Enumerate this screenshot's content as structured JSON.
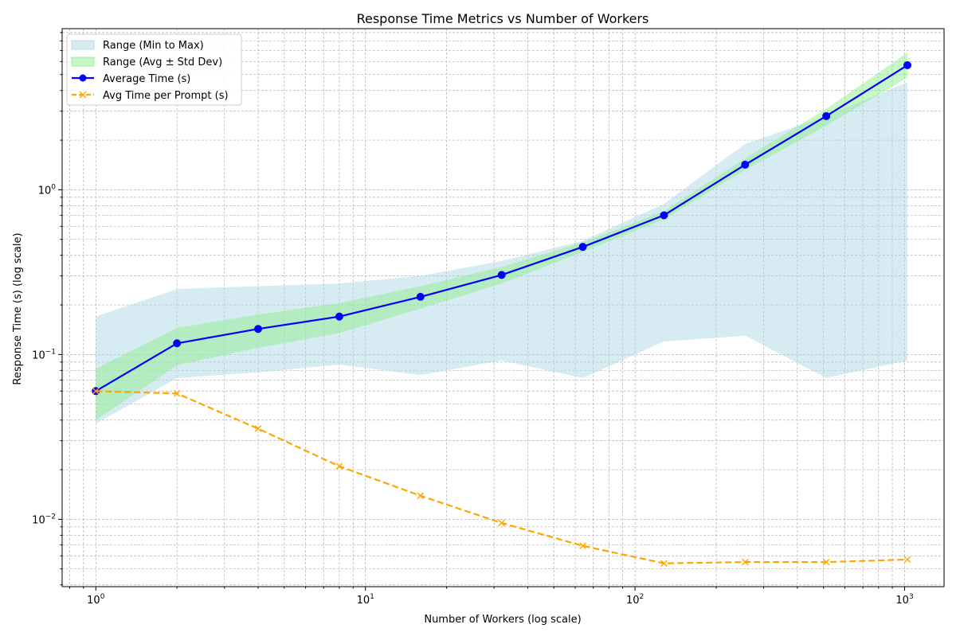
{
  "chart_data": {
    "type": "line",
    "title": "Response Time Metrics vs Number of Workers",
    "xlabel": "Number of Workers (log scale)",
    "ylabel": "Response Time (s) (log scale)",
    "xscale": "log",
    "yscale": "log",
    "xlim": [
      0.75,
      1400
    ],
    "ylim": [
      0.0039,
      9.5
    ],
    "grid": true,
    "legend_position": "top-left",
    "x_ticks": [
      {
        "base": "10",
        "exp": "0"
      },
      {
        "base": "10",
        "exp": "1"
      },
      {
        "base": "10",
        "exp": "2"
      },
      {
        "base": "10",
        "exp": "3"
      }
    ],
    "y_ticks": [
      {
        "base": "10",
        "exp": "−2"
      },
      {
        "base": "10",
        "exp": "−1"
      },
      {
        "base": "10",
        "exp": "0"
      }
    ],
    "x": [
      1,
      2,
      4,
      8,
      16,
      32,
      64,
      128,
      256,
      512,
      1024
    ],
    "bands": [
      {
        "name": "Range (Min to Max)",
        "color": "#add8e6",
        "opacity": 0.5,
        "lower": [
          0.038,
          0.072,
          0.078,
          0.087,
          0.075,
          0.092,
          0.072,
          0.12,
          0.13,
          0.072,
          0.092
        ],
        "upper": [
          0.17,
          0.25,
          0.26,
          0.27,
          0.3,
          0.37,
          0.49,
          0.82,
          1.9,
          2.8,
          4.5
        ]
      },
      {
        "name": "Range (Avg ± Std Dev)",
        "color": "#90ee90",
        "opacity": 0.5,
        "lower": [
          0.04,
          0.086,
          0.11,
          0.135,
          0.19,
          0.27,
          0.42,
          0.66,
          1.32,
          2.45,
          4.8
        ],
        "upper": [
          0.082,
          0.145,
          0.175,
          0.205,
          0.26,
          0.34,
          0.48,
          0.74,
          1.55,
          3.1,
          6.8
        ]
      }
    ],
    "series": [
      {
        "name": "Average Time (s)",
        "color": "#0000ff",
        "style": "solid",
        "marker": "circle",
        "values": [
          0.06,
          0.117,
          0.143,
          0.17,
          0.224,
          0.304,
          0.45,
          0.7,
          1.42,
          2.8,
          5.7
        ]
      },
      {
        "name": "Avg Time per Prompt (s)",
        "color": "#ffa500",
        "style": "dashed",
        "marker": "x",
        "values": [
          0.06,
          0.058,
          0.0355,
          0.021,
          0.0139,
          0.0095,
          0.0069,
          0.0054,
          0.0055,
          0.0055,
          0.0057
        ]
      }
    ]
  }
}
